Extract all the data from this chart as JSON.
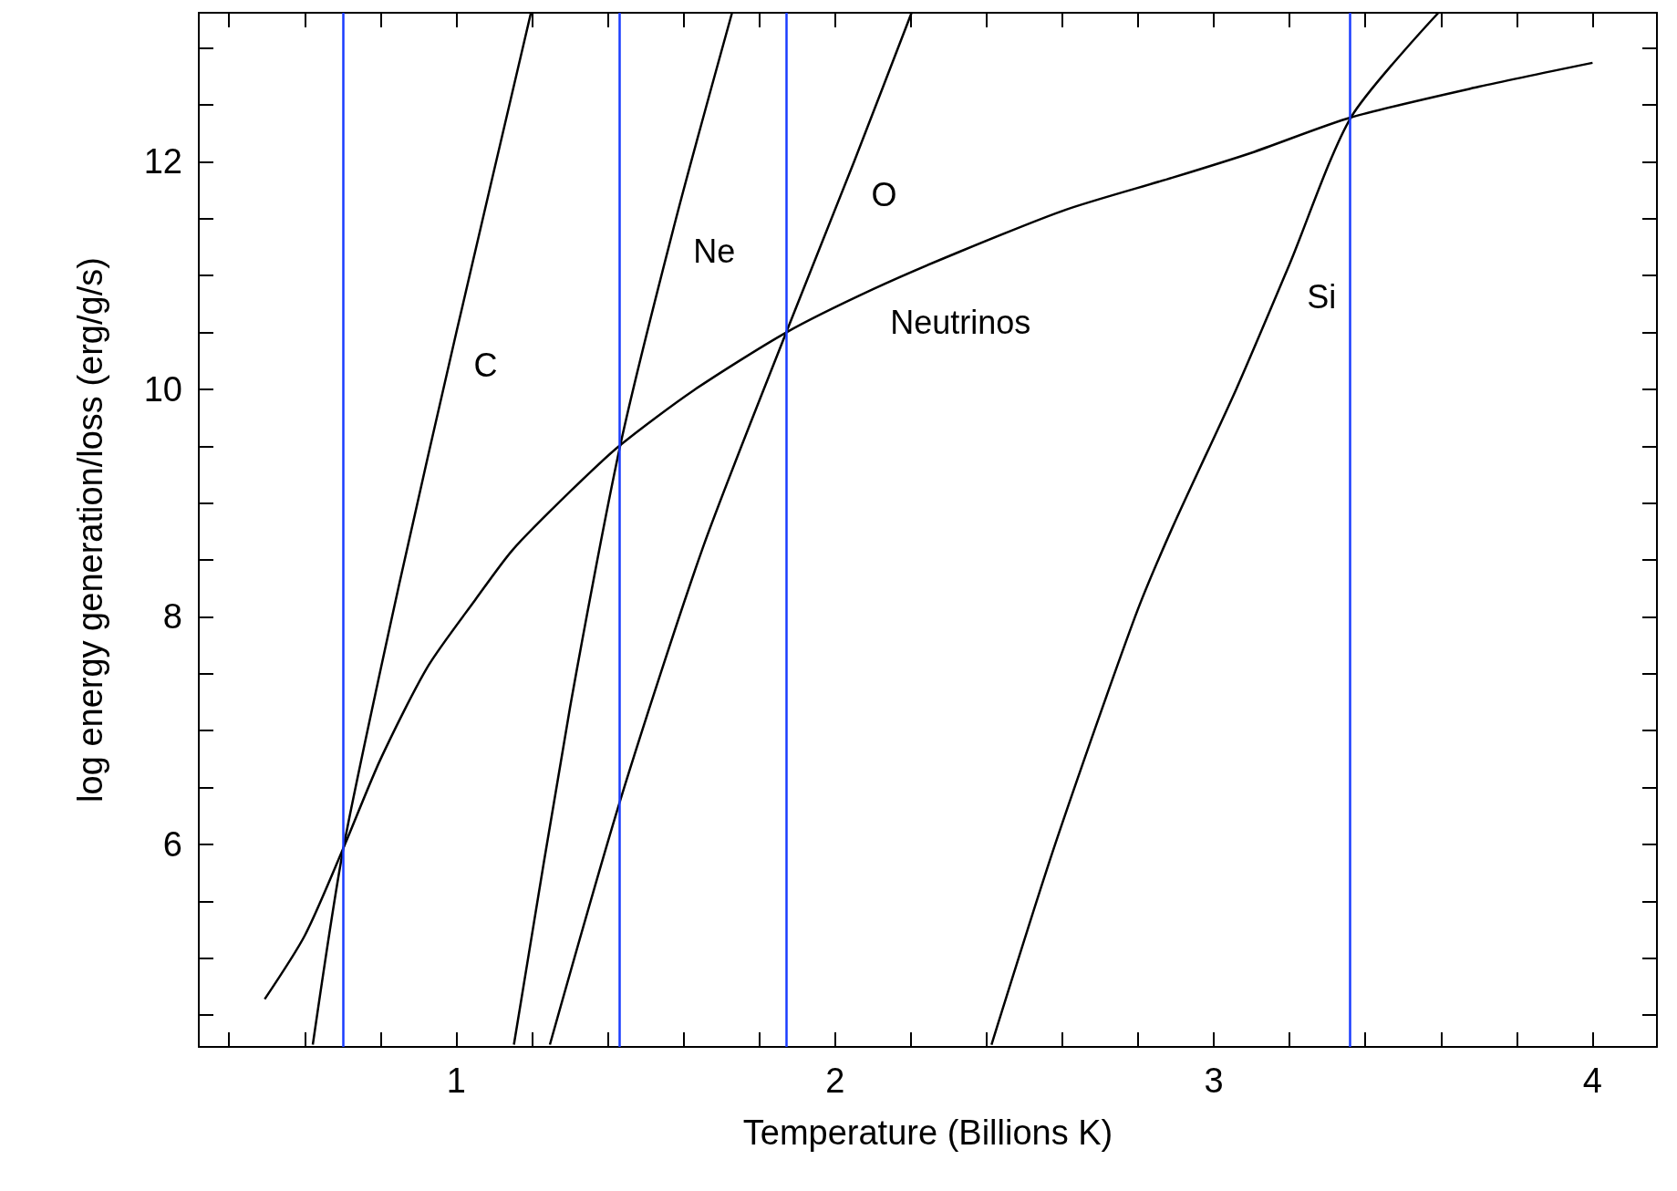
{
  "chart_data": {
    "type": "line",
    "xlabel": "Temperature (Billions K)",
    "ylabel": "log energy generation/loss (erg/g/s)",
    "xlim": [
      0.32,
      4.17
    ],
    "ylim": [
      4.22,
      13.31
    ],
    "xticks": [
      {
        "value": 0.4,
        "label": null
      },
      {
        "value": 0.6,
        "label": null
      },
      {
        "value": 0.8,
        "label": null
      },
      1,
      {
        "value": 1.2,
        "label": null
      },
      {
        "value": 1.4,
        "label": null
      },
      {
        "value": 1.6,
        "label": null
      },
      {
        "value": 1.8,
        "label": null
      },
      2,
      {
        "value": 2.2,
        "label": null
      },
      {
        "value": 2.4,
        "label": null
      },
      {
        "value": 2.6,
        "label": null
      },
      {
        "value": 2.8,
        "label": null
      },
      3,
      {
        "value": 3.2,
        "label": null
      },
      {
        "value": 3.4,
        "label": null
      },
      {
        "value": 3.6,
        "label": null
      },
      {
        "value": 3.8,
        "label": null
      },
      4
    ],
    "yticks": [
      {
        "value": 4.5,
        "label": null
      },
      {
        "value": 5,
        "label": null
      },
      {
        "value": 5.5,
        "label": null
      },
      6,
      {
        "value": 6.5,
        "label": null
      },
      {
        "value": 7,
        "label": null
      },
      {
        "value": 7.5,
        "label": null
      },
      8,
      {
        "value": 8.5,
        "label": null
      },
      {
        "value": 9,
        "label": null
      },
      {
        "value": 9.5,
        "label": null
      },
      10,
      {
        "value": 10.5,
        "label": null
      },
      {
        "value": 11,
        "label": null
      },
      {
        "value": 11.5,
        "label": null
      },
      12,
      {
        "value": 12.5,
        "label": null
      },
      {
        "value": 13,
        "label": null
      }
    ],
    "grid": false,
    "legend": false,
    "marker": "none",
    "line_style": "solid",
    "series": [
      {
        "name": "Neutrinos",
        "color": "#000000",
        "x": [
          0.494,
          0.6,
          0.702,
          0.8,
          0.924,
          1.05,
          1.149,
          1.3,
          1.433,
          1.626,
          1.871,
          2.1,
          2.329,
          2.61,
          2.89,
          3.1,
          3.362,
          3.7,
          4.0
        ],
        "values": [
          4.64,
          5.2,
          5.97,
          6.75,
          7.56,
          8.15,
          8.59,
          9.1,
          9.51,
          9.99,
          10.5,
          10.88,
          11.21,
          11.58,
          11.86,
          12.08,
          12.39,
          12.66,
          12.87
        ]
      },
      {
        "name": "C",
        "color": "#000000",
        "x": [
          0.621,
          0.702,
          0.85,
          1.0,
          1.197
        ],
        "values": [
          4.24,
          5.97,
          8.3,
          10.5,
          13.31
        ]
      },
      {
        "name": "Ne",
        "color": "#000000",
        "x": [
          1.152,
          1.3,
          1.433,
          1.58,
          1.728
        ],
        "values": [
          4.24,
          7.2,
          9.51,
          11.5,
          13.31
        ]
      },
      {
        "name": "O",
        "color": "#000000",
        "x": [
          1.247,
          1.433,
          1.65,
          1.871,
          2.05,
          2.202
        ],
        "values": [
          4.24,
          6.39,
          8.6,
          10.5,
          12.0,
          13.31
        ]
      },
      {
        "name": "Si",
        "color": "#000000",
        "x": [
          2.413,
          2.581,
          2.792,
          2.89,
          3.059,
          3.2,
          3.362,
          3.593
        ],
        "values": [
          4.24,
          6.0,
          8.0,
          8.78,
          10.0,
          11.1,
          12.39,
          13.31
        ]
      }
    ],
    "ref_lines": [
      {
        "axis": "x",
        "value": 0.702,
        "color": "#1a3cff"
      },
      {
        "axis": "x",
        "value": 1.433,
        "color": "#1a3cff"
      },
      {
        "axis": "x",
        "value": 1.871,
        "color": "#1a3cff"
      },
      {
        "axis": "x",
        "value": 3.362,
        "color": "#1a3cff"
      }
    ]
  }
}
